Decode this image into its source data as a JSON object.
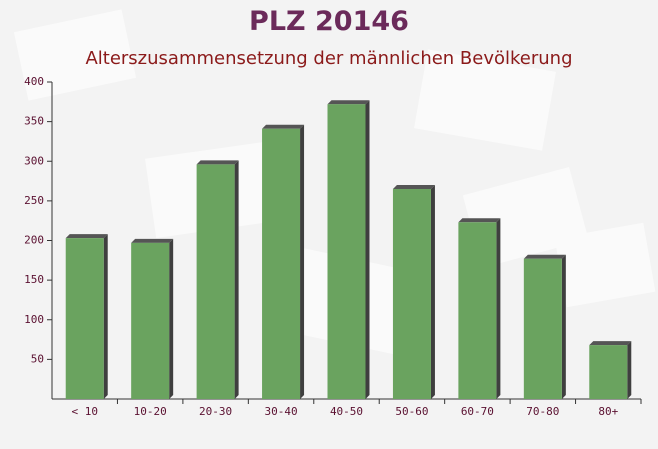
{
  "chart_data": {
    "type": "bar",
    "title": "PLZ 20146",
    "subtitle": "Alterszusammensetzung der männlichen Bevölkerung",
    "categories": [
      "< 10",
      "10-20",
      "20-30",
      "30-40",
      "40-50",
      "50-60",
      "60-70",
      "70-80",
      "80+"
    ],
    "values": [
      203,
      197,
      296,
      341,
      372,
      265,
      223,
      177,
      68
    ],
    "color": "#6aa35f",
    "ylim": [
      0,
      400
    ],
    "yticks": [
      50,
      100,
      150,
      200,
      250,
      300,
      350,
      400
    ]
  }
}
